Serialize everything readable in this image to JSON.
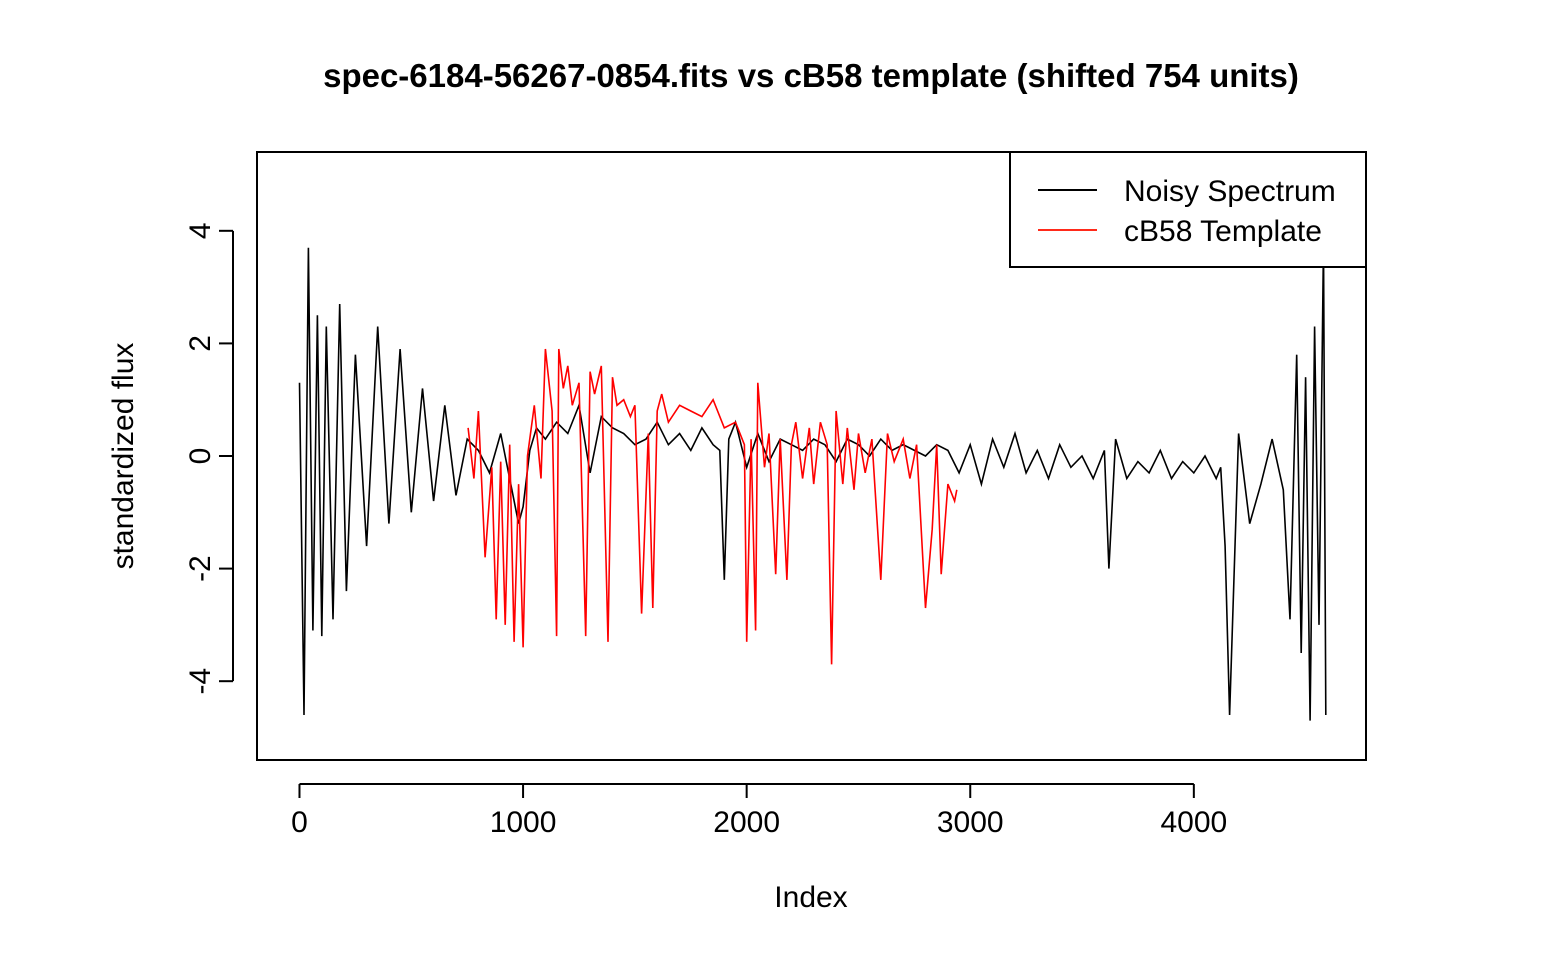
{
  "chart_data": {
    "type": "line",
    "title": "spec-6184-56267-0854.fits vs cB58 template (shifted 754 units)",
    "xlabel": "Index",
    "ylabel": "standardized flux",
    "xlim": [
      -190,
      4770
    ],
    "ylim": [
      -5.4,
      5.4
    ],
    "xticks": [
      0,
      1000,
      2000,
      3000,
      4000
    ],
    "yticks": [
      -4,
      -2,
      0,
      2,
      4
    ],
    "grid": false,
    "legend_position": "top-right",
    "series": [
      {
        "name": "Noisy Spectrum",
        "color": "#000000",
        "x": [
          0,
          20,
          40,
          60,
          80,
          100,
          120,
          150,
          180,
          210,
          250,
          300,
          350,
          400,
          450,
          500,
          550,
          600,
          650,
          700,
          750,
          800,
          850,
          900,
          950,
          980,
          1000,
          1030,
          1060,
          1100,
          1150,
          1200,
          1250,
          1300,
          1350,
          1400,
          1450,
          1500,
          1550,
          1600,
          1650,
          1700,
          1750,
          1800,
          1850,
          1880,
          1900,
          1920,
          1950,
          2000,
          2050,
          2100,
          2150,
          2200,
          2250,
          2300,
          2350,
          2400,
          2450,
          2500,
          2550,
          2600,
          2650,
          2700,
          2750,
          2800,
          2850,
          2900,
          2950,
          3000,
          3050,
          3100,
          3150,
          3200,
          3250,
          3300,
          3350,
          3400,
          3450,
          3500,
          3550,
          3600,
          3620,
          3650,
          3700,
          3750,
          3800,
          3850,
          3900,
          3950,
          4000,
          4050,
          4100,
          4120,
          4140,
          4160,
          4200,
          4250,
          4300,
          4350,
          4400,
          4430,
          4460,
          4480,
          4500,
          4520,
          4540,
          4560,
          4580,
          4590
        ],
        "values": [
          1.3,
          -4.6,
          3.7,
          -3.1,
          2.5,
          -3.2,
          2.3,
          -2.9,
          2.7,
          -2.4,
          1.8,
          -1.6,
          2.3,
          -1.2,
          1.9,
          -1.0,
          1.2,
          -0.8,
          0.9,
          -0.7,
          0.3,
          0.1,
          -0.3,
          0.4,
          -0.6,
          -1.2,
          -0.9,
          0.1,
          0.5,
          0.3,
          0.6,
          0.4,
          0.9,
          -0.3,
          0.7,
          0.5,
          0.4,
          0.2,
          0.3,
          0.6,
          0.2,
          0.4,
          0.1,
          0.5,
          0.2,
          0.1,
          -2.2,
          0.3,
          0.6,
          -0.2,
          0.4,
          -0.1,
          0.3,
          0.2,
          0.1,
          0.3,
          0.2,
          -0.1,
          0.3,
          0.2,
          0.0,
          0.3,
          0.1,
          0.2,
          0.1,
          0.0,
          0.2,
          0.1,
          -0.3,
          0.2,
          -0.5,
          0.3,
          -0.2,
          0.4,
          -0.3,
          0.1,
          -0.4,
          0.2,
          -0.2,
          0.0,
          -0.4,
          0.1,
          -2.0,
          0.3,
          -0.4,
          -0.1,
          -0.3,
          0.1,
          -0.4,
          -0.1,
          -0.3,
          0.0,
          -0.4,
          -0.2,
          -1.6,
          -4.6,
          0.4,
          -1.2,
          -0.5,
          0.3,
          -0.6,
          -2.9,
          1.8,
          -3.5,
          1.4,
          -4.7,
          2.3,
          -3.0,
          3.8,
          -4.6
        ]
      },
      {
        "name": "cB58 Template",
        "color": "#ff0000",
        "x": [
          754,
          780,
          800,
          830,
          860,
          880,
          900,
          920,
          940,
          960,
          980,
          1000,
          1020,
          1050,
          1080,
          1100,
          1130,
          1150,
          1160,
          1180,
          1200,
          1220,
          1250,
          1280,
          1300,
          1320,
          1350,
          1380,
          1400,
          1420,
          1450,
          1480,
          1500,
          1530,
          1560,
          1580,
          1600,
          1620,
          1650,
          1700,
          1750,
          1800,
          1850,
          1900,
          1950,
          1990,
          2000,
          2020,
          2040,
          2050,
          2080,
          2100,
          2130,
          2150,
          2180,
          2200,
          2220,
          2250,
          2280,
          2300,
          2330,
          2360,
          2380,
          2400,
          2430,
          2450,
          2480,
          2500,
          2530,
          2560,
          2600,
          2630,
          2660,
          2700,
          2730,
          2760,
          2800,
          2830,
          2850,
          2870,
          2900,
          2930,
          2940
        ],
        "values": [
          0.5,
          -0.4,
          0.8,
          -1.8,
          -0.2,
          -2.9,
          -0.1,
          -3.0,
          0.2,
          -3.3,
          -0.5,
          -3.4,
          0.0,
          0.9,
          -0.4,
          1.9,
          0.8,
          -3.2,
          1.9,
          1.2,
          1.6,
          0.9,
          1.3,
          -3.2,
          1.5,
          1.1,
          1.6,
          -3.3,
          1.4,
          0.9,
          1.0,
          0.7,
          0.9,
          -2.8,
          0.4,
          -2.7,
          0.8,
          1.1,
          0.6,
          0.9,
          0.8,
          0.7,
          1.0,
          0.5,
          0.6,
          0.2,
          -3.3,
          0.3,
          -3.1,
          1.3,
          -0.2,
          0.4,
          -2.1,
          0.3,
          -2.2,
          0.2,
          0.6,
          -0.4,
          0.5,
          -0.5,
          0.6,
          0.2,
          -3.7,
          0.8,
          -0.5,
          0.5,
          -0.6,
          0.4,
          -0.3,
          0.3,
          -2.2,
          0.4,
          -0.1,
          0.3,
          -0.4,
          0.2,
          -2.7,
          -1.3,
          0.2,
          -2.1,
          -0.5,
          -0.8,
          -0.6
        ]
      }
    ]
  }
}
